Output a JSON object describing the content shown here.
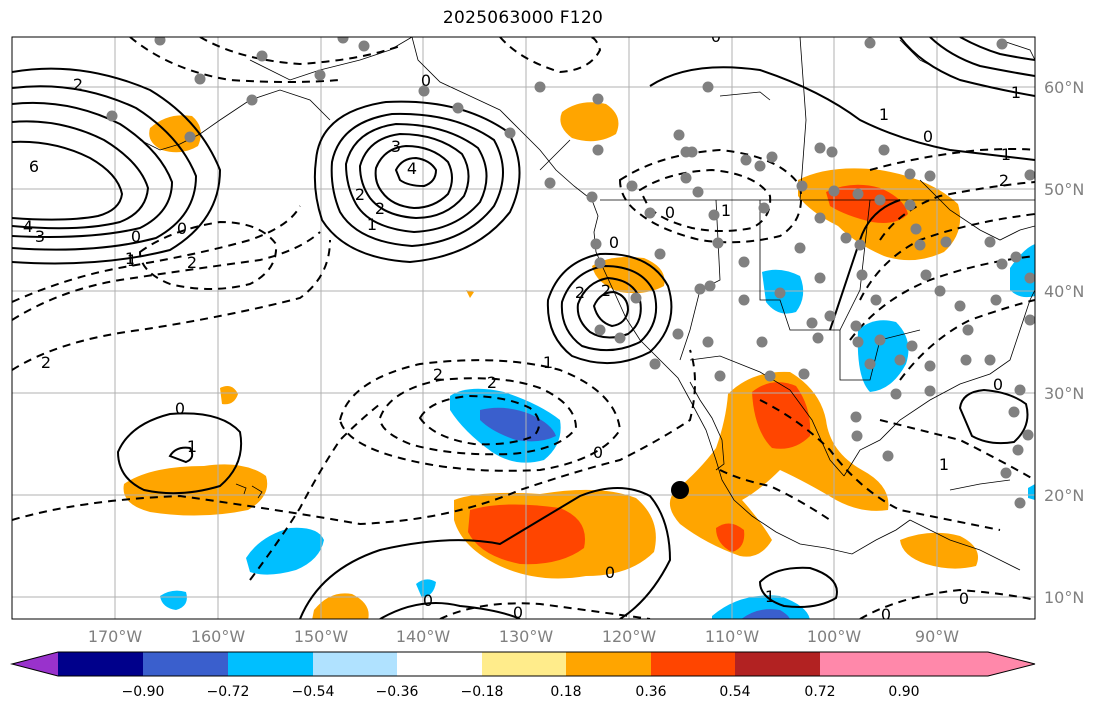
{
  "title": "2025063000 F120",
  "longitude_labels": [
    "170°W",
    "160°W",
    "150°W",
    "140°W",
    "130°W",
    "120°W",
    "110°W",
    "100°W",
    "90°W"
  ],
  "latitude_labels": [
    "60°N",
    "50°N",
    "40°N",
    "30°N",
    "20°N",
    "10°N"
  ],
  "colorbar": {
    "colors": [
      "#9932cc",
      "#00008b",
      "#3a5fcd",
      "#00bfff",
      "#b0e2ff",
      "#ffffff",
      "#ffec8b",
      "#ffa500",
      "#ff4500",
      "#b22222",
      "#ff88aa"
    ],
    "tick_labels": [
      "−0.90",
      "−0.72",
      "−0.54",
      "−0.36",
      "−0.18",
      "0.18",
      "0.36",
      "0.54",
      "0.72",
      "0.90"
    ]
  },
  "contour_labels": [
    "2",
    "6",
    "4",
    "3",
    "0",
    "1",
    "2",
    "3",
    "4",
    "2",
    "2",
    "1",
    "0",
    "0",
    "1",
    "2",
    "2",
    "2",
    "2",
    "1",
    "0",
    "0",
    "1",
    "0",
    "0",
    "0",
    "2",
    "1",
    "1",
    "0",
    "0",
    "2",
    "1",
    "1",
    "0",
    "1",
    "0",
    "0",
    "0",
    "1",
    "0"
  ],
  "colors": {
    "contour": "#000000",
    "station_dot": "#808080",
    "grid": "#b0b0b0",
    "coast": "#000000"
  }
}
